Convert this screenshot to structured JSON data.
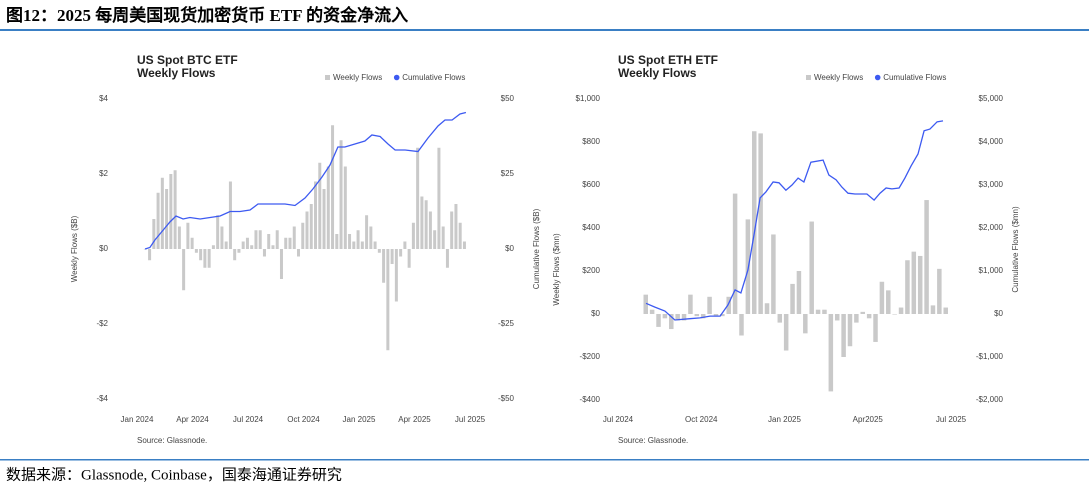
{
  "title": "图12：2025 每周美国现货加密货币 ETF 的资金净流入",
  "source": "数据来源：Glassnode, Coinbase，国泰海通证券研究",
  "chart_data": [
    {
      "type": "bar_line",
      "title": "US Spot BTC ETF",
      "subtitle": "Weekly Flows",
      "ylabel": "Weekly Flows ($B)",
      "y2label": "Cumulative Flows ($B)",
      "note": "Source: Glassnode.",
      "xlim": [
        0,
        18
      ],
      "xticks": [
        {
          "value": 0,
          "label": "Jan 2024"
        },
        {
          "value": 3,
          "label": "Apr 2024"
        },
        {
          "value": 6,
          "label": "Jul 2024"
        },
        {
          "value": 9,
          "label": "Oct 2024"
        },
        {
          "value": 12,
          "label": "Jan 2025"
        },
        {
          "value": 15,
          "label": "Apr 2025"
        },
        {
          "value": 18,
          "label": "Jul 2025"
        }
      ],
      "ylim": [
        -4,
        4
      ],
      "yticks": [
        {
          "value": 4,
          "label": "$4"
        },
        {
          "value": 2,
          "label": "$2"
        },
        {
          "value": 0,
          "label": "$0"
        },
        {
          "value": -2,
          "label": "-$2"
        },
        {
          "value": -4,
          "label": "-$4"
        }
      ],
      "y2lim": [
        -50,
        50
      ],
      "y2ticks": [
        {
          "value": 50,
          "label": "$50"
        },
        {
          "value": 25,
          "label": "$25"
        },
        {
          "value": 0,
          "label": "$0"
        },
        {
          "value": -25,
          "label": "-$25"
        },
        {
          "value": -50,
          "label": "-$50"
        }
      ],
      "grid": false,
      "series": [
        {
          "name": "Weekly Flows",
          "type": "bar",
          "color": "#c9c9c9",
          "x": [
            0.45,
            0.68,
            0.91,
            1.14,
            1.37,
            1.6,
            1.83,
            2.06,
            2.29,
            2.52,
            2.75,
            2.98,
            3.21,
            3.44,
            3.67,
            3.9,
            4.13,
            4.36,
            4.59,
            4.82,
            5.05,
            5.28,
            5.51,
            5.74,
            5.97,
            6.2,
            6.43,
            6.66,
            6.89,
            7.12,
            7.35,
            7.58,
            7.81,
            8.04,
            8.27,
            8.5,
            8.73,
            8.96,
            9.19,
            9.42,
            9.65,
            9.88,
            10.11,
            10.34,
            10.57,
            10.8,
            11.03,
            11.26,
            11.49,
            11.72,
            11.95,
            12.18,
            12.41,
            12.64,
            12.87,
            13.1,
            13.33,
            13.56,
            13.79,
            14.02,
            14.25,
            14.48,
            14.71,
            14.94,
            15.17,
            15.4,
            15.63,
            15.86,
            16.09,
            16.32,
            16.55,
            16.78,
            17.01,
            17.24,
            17.47,
            17.7
          ],
          "values": [
            0.0,
            -0.3,
            0.8,
            1.5,
            1.9,
            1.6,
            2.0,
            2.1,
            0.6,
            -1.1,
            0.7,
            0.3,
            -0.1,
            -0.3,
            -0.5,
            -0.5,
            0.1,
            0.9,
            0.6,
            0.2,
            1.8,
            -0.3,
            -0.1,
            0.2,
            0.3,
            0.1,
            0.5,
            0.5,
            -0.2,
            0.4,
            0.1,
            0.5,
            -0.8,
            0.3,
            0.3,
            0.6,
            -0.2,
            0.7,
            1.0,
            1.2,
            1.8,
            2.3,
            1.6,
            2.2,
            3.3,
            0.4,
            2.9,
            2.2,
            0.4,
            0.2,
            0.5,
            0.2,
            0.9,
            0.6,
            0.2,
            -0.1,
            -0.9,
            -2.7,
            -0.4,
            -1.4,
            -0.2,
            0.2,
            -0.5,
            0.7,
            2.7,
            1.4,
            1.3,
            1.0,
            0.5,
            2.7,
            0.6,
            -0.5,
            1.0,
            1.2,
            0.7,
            0.2
          ]
        },
        {
          "name": "Cumulative Flows",
          "type": "line",
          "axis": "y2",
          "color": "#3d5af1",
          "x": [
            0.43,
            0.7,
            0.97,
            1.24,
            1.51,
            1.78,
            2.11,
            2.49,
            2.86,
            3.41,
            3.95,
            4.49,
            5.03,
            5.57,
            6.11,
            6.54,
            7.19,
            8.0,
            8.54,
            9.08,
            9.51,
            10.0,
            10.43,
            10.86,
            11.24,
            11.78,
            12.32,
            12.7,
            13.14,
            13.57,
            13.95,
            14.49,
            15.19,
            15.73,
            16.27,
            16.65,
            17.03,
            17.46,
            17.78
          ],
          "values": [
            0,
            0.5,
            3,
            5,
            7,
            9,
            11,
            10,
            10.5,
            10,
            10.5,
            11,
            12.5,
            12.5,
            13,
            15,
            15,
            15,
            14.5,
            17,
            20,
            24,
            28,
            34,
            34,
            35,
            36,
            38,
            37.5,
            35,
            33,
            33,
            32.5,
            37,
            41,
            43,
            43,
            45,
            45.5
          ]
        }
      ]
    },
    {
      "type": "bar_line",
      "title": "US Spot ETH ETF",
      "subtitle": "Weekly Flows",
      "ylabel": "Weekly Flows ($mn)",
      "y2label": "Cumulative Flows ($mn)",
      "note": "Source: Glassnode.",
      "xlim": [
        0,
        12
      ],
      "xticks": [
        {
          "value": 0,
          "label": "Jul 2024"
        },
        {
          "value": 3,
          "label": "Oct 2024"
        },
        {
          "value": 6,
          "label": "Jan 2025"
        },
        {
          "value": 9,
          "label": "Apr2025"
        },
        {
          "value": 12,
          "label": "Jul 2025"
        }
      ],
      "ylim": [
        -400,
        1000
      ],
      "yticks": [
        {
          "value": 1000,
          "label": "$1,000"
        },
        {
          "value": 800,
          "label": "$800"
        },
        {
          "value": 600,
          "label": "$600"
        },
        {
          "value": 400,
          "label": "$400"
        },
        {
          "value": 200,
          "label": "$200"
        },
        {
          "value": 0,
          "label": "$0"
        },
        {
          "value": -200,
          "label": "-$200"
        },
        {
          "value": -400,
          "label": "-$400"
        }
      ],
      "y2lim": [
        -2000,
        5000
      ],
      "y2ticks": [
        {
          "value": 5000,
          "label": "$5,000"
        },
        {
          "value": 4000,
          "label": "$4,000"
        },
        {
          "value": 3000,
          "label": "$3,000"
        },
        {
          "value": 2000,
          "label": "$2,000"
        },
        {
          "value": 1000,
          "label": "$1,000"
        },
        {
          "value": 0,
          "label": "$0"
        },
        {
          "value": -1000,
          "label": "-$1,000"
        },
        {
          "value": -2000,
          "label": "-$2,000"
        }
      ],
      "grid": false,
      "series": [
        {
          "name": "Weekly Flows",
          "type": "bar",
          "color": "#c9c9c9",
          "x": [
            1.0,
            1.23,
            1.46,
            1.69,
            1.92,
            2.15,
            2.38,
            2.61,
            2.84,
            3.07,
            3.3,
            3.53,
            3.76,
            3.99,
            4.22,
            4.45,
            4.68,
            4.91,
            5.14,
            5.37,
            5.6,
            5.83,
            6.06,
            6.29,
            6.52,
            6.75,
            6.98,
            7.21,
            7.44,
            7.67,
            7.9,
            8.13,
            8.36,
            8.59,
            8.82,
            9.05,
            9.28,
            9.51,
            9.74,
            9.97,
            10.2,
            10.43,
            10.66,
            10.89,
            11.12,
            11.35,
            11.58,
            11.81
          ],
          "values": [
            90,
            20,
            -60,
            -20,
            -70,
            -30,
            -30,
            90,
            -10,
            -20,
            80,
            -10,
            -10,
            80,
            560,
            -100,
            440,
            850,
            840,
            50,
            370,
            -40,
            -170,
            140,
            200,
            -90,
            430,
            20,
            20,
            -360,
            -30,
            -200,
            -150,
            -40,
            10,
            -20,
            -130,
            150,
            110,
            0,
            30,
            250,
            290,
            270,
            530,
            40,
            210,
            30
          ]
        },
        {
          "name": "Cumulative Flows",
          "type": "line",
          "axis": "y2",
          "color": "#3d5af1",
          "x": [
            1.01,
            1.33,
            1.69,
            2.05,
            2.59,
            2.95,
            3.32,
            3.68,
            3.96,
            4.22,
            4.43,
            4.68,
            4.9,
            5.12,
            5.33,
            5.59,
            5.8,
            6.05,
            6.27,
            6.49,
            6.7,
            6.95,
            7.39,
            7.6,
            7.86,
            8.07,
            8.29,
            8.54,
            8.97,
            9.23,
            9.44,
            9.66,
            9.87,
            10.13,
            10.34,
            10.56,
            10.81,
            11.03,
            11.24,
            11.5,
            11.71
          ],
          "values": [
            250,
            160,
            70,
            -140,
            -110,
            -90,
            -50,
            -50,
            210,
            560,
            490,
            1020,
            1840,
            2700,
            2840,
            3070,
            3050,
            2880,
            3000,
            3160,
            3070,
            3530,
            3580,
            3230,
            3120,
            2950,
            2810,
            2790,
            2790,
            2650,
            2810,
            2930,
            2910,
            2930,
            3160,
            3440,
            3720,
            4260,
            4300,
            4470,
            4490
          ]
        }
      ]
    }
  ]
}
